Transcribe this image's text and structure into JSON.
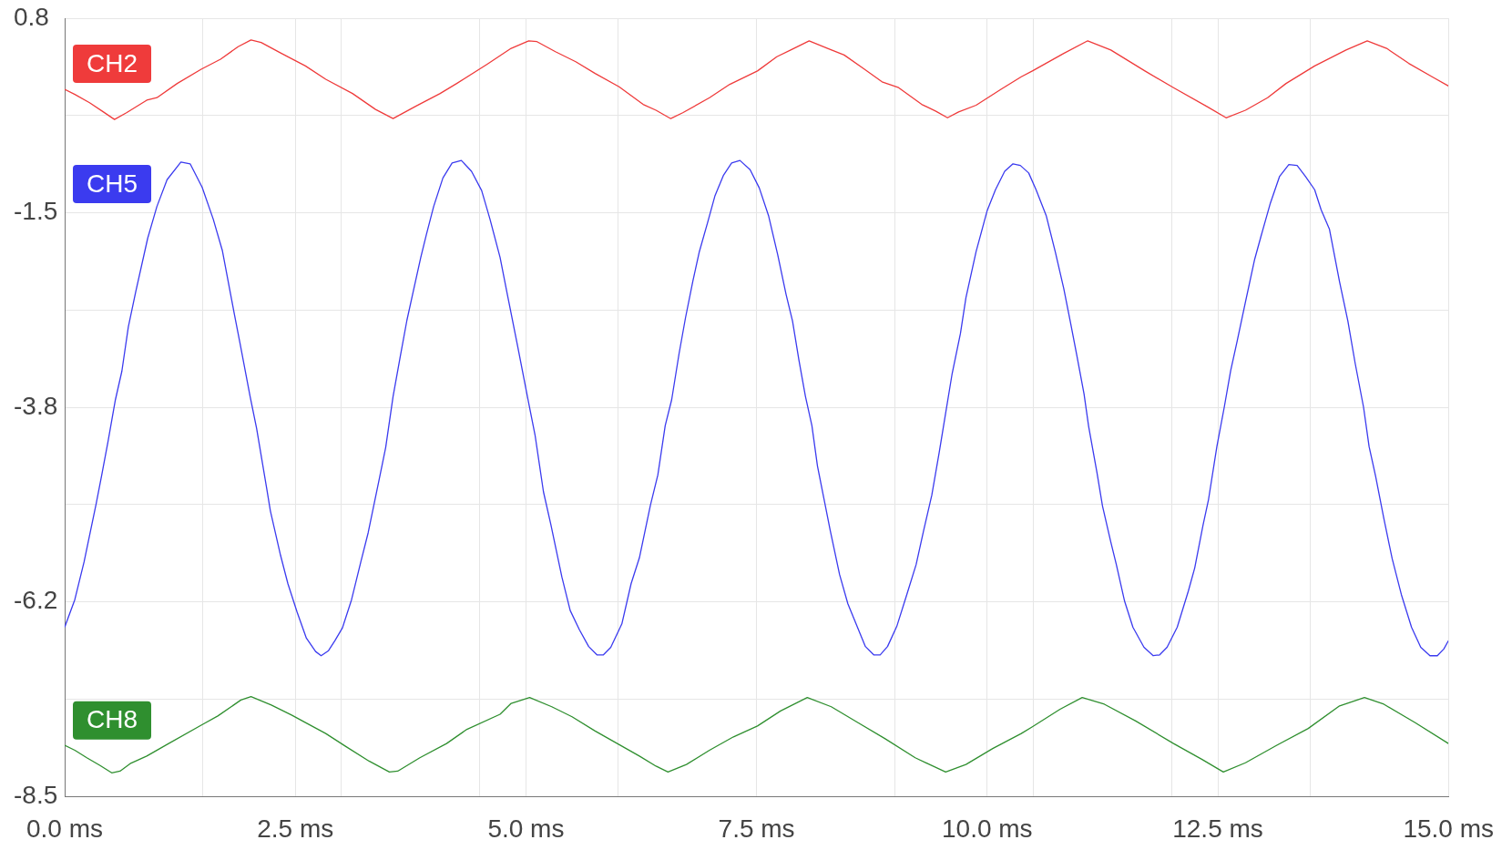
{
  "chart_data": {
    "type": "line",
    "xlim": [
      0,
      15
    ],
    "xticks": [
      {
        "value": 0,
        "label": "0.0 ms"
      },
      {
        "value": 1.5,
        "label": null
      },
      {
        "value": 2.5,
        "label": "2.5 ms"
      },
      {
        "value": 3,
        "label": null
      },
      {
        "value": 4.5,
        "label": null
      },
      {
        "value": 5,
        "label": "5.0 ms"
      },
      {
        "value": 6,
        "label": null
      },
      {
        "value": 7.5,
        "label": "7.5 ms"
      },
      {
        "value": 9,
        "label": null
      },
      {
        "value": 10,
        "label": "10.0 ms"
      },
      {
        "value": 10.5,
        "label": null
      },
      {
        "value": 12,
        "label": null
      },
      {
        "value": 12.5,
        "label": "12.5 ms"
      },
      {
        "value": 13.5,
        "label": null
      },
      {
        "value": 15,
        "label": "15.0 ms"
      }
    ],
    "ylim": [
      -8.5,
      0.8
    ],
    "yticks": [
      0.8,
      {
        "value": -0.3625,
        "label": null
      },
      {
        "value": -1.525,
        "label": "-1.5"
      },
      {
        "value": -2.6875,
        "label": null
      },
      {
        "value": -3.85,
        "label": "-3.8"
      },
      {
        "value": -5.0125,
        "label": null
      },
      {
        "value": -6.175,
        "label": "-6.2"
      },
      {
        "value": -7.3375,
        "label": null
      },
      -8.5
    ],
    "grid": true,
    "series": [
      {
        "name": "CH2",
        "color": "#ef3b3b",
        "x": [
          0,
          0.11,
          0.27,
          0.42,
          0.54,
          0.67,
          0.89,
          1.0,
          1.22,
          1.48,
          1.69,
          1.88,
          2.02,
          2.13,
          2.35,
          2.61,
          2.83,
          3.12,
          3.37,
          3.56,
          3.81,
          4.07,
          4.25,
          4.58,
          4.84,
          5.03,
          5.12,
          5.32,
          5.54,
          5.75,
          6.01,
          6.27,
          6.41,
          6.57,
          6.7,
          6.99,
          7.21,
          7.51,
          7.72,
          7.87,
          8.07,
          8.27,
          8.45,
          8.67,
          8.86,
          9.04,
          9.29,
          9.44,
          9.57,
          9.69,
          9.88,
          10.15,
          10.37,
          10.49,
          10.83,
          11.09,
          11.34,
          11.71,
          12.02,
          12.39,
          12.59,
          12.8,
          13.04,
          13.24,
          13.55,
          13.89,
          14.12,
          14.33,
          14.57,
          14.84,
          15
        ],
        "values": [
          -0.05,
          -0.11,
          -0.21,
          -0.32,
          -0.41,
          -0.33,
          -0.18,
          -0.15,
          0.02,
          0.19,
          0.31,
          0.46,
          0.54,
          0.51,
          0.38,
          0.23,
          0.07,
          -0.1,
          -0.29,
          -0.4,
          -0.25,
          -0.1,
          0.02,
          0.25,
          0.44,
          0.53,
          0.52,
          0.4,
          0.28,
          0.14,
          -0.02,
          -0.23,
          -0.3,
          -0.4,
          -0.33,
          -0.15,
          0.01,
          0.17,
          0.34,
          0.42,
          0.53,
          0.44,
          0.36,
          0.19,
          0.04,
          -0.03,
          -0.23,
          -0.31,
          -0.39,
          -0.32,
          -0.24,
          -0.05,
          0.1,
          0.17,
          0.38,
          0.53,
          0.42,
          0.17,
          -0.03,
          -0.26,
          -0.39,
          -0.3,
          -0.15,
          0.02,
          0.23,
          0.42,
          0.53,
          0.44,
          0.26,
          0.09,
          -0.01
        ]
      },
      {
        "name": "CH5",
        "color": "#3b3bef",
        "x": [
          0,
          0.11,
          0.21,
          0.34,
          0.4,
          0.47,
          0.55,
          0.62,
          0.69,
          0.77,
          0.9,
          1.0,
          1.11,
          1.26,
          1.36,
          1.49,
          1.61,
          1.71,
          1.84,
          1.9,
          2.01,
          2.08,
          2.19,
          2.23,
          2.34,
          2.42,
          2.52,
          2.62,
          2.72,
          2.78,
          2.86,
          2.93,
          3.01,
          3.11,
          3.21,
          3.29,
          3.41,
          3.48,
          3.56,
          3.64,
          3.71,
          3.77,
          3.86,
          3.92,
          4.0,
          4.1,
          4.2,
          4.3,
          4.41,
          4.52,
          4.61,
          4.72,
          4.8,
          4.91,
          5.03,
          5.1,
          5.19,
          5.27,
          5.39,
          5.48,
          5.58,
          5.68,
          5.77,
          5.84,
          5.92,
          6.04,
          6.14,
          6.23,
          6.35,
          6.43,
          6.51,
          6.58,
          6.66,
          6.73,
          6.81,
          6.88,
          6.97,
          7.05,
          7.14,
          7.23,
          7.32,
          7.43,
          7.53,
          7.63,
          7.73,
          7.82,
          7.89,
          7.96,
          8.03,
          8.1,
          8.16,
          8.23,
          8.3,
          8.4,
          8.49,
          8.59,
          8.68,
          8.77,
          8.84,
          8.92,
          9.02,
          9.12,
          9.23,
          9.31,
          9.4,
          9.48,
          9.55,
          9.62,
          9.71,
          9.77,
          9.88,
          10.0,
          10.09,
          10.19,
          10.28,
          10.36,
          10.45,
          10.53,
          10.64,
          10.74,
          10.83,
          10.9,
          10.97,
          11.05,
          11.1,
          11.19,
          11.25,
          11.34,
          11.4,
          11.49,
          11.58,
          11.7,
          11.8,
          11.87,
          11.95,
          12.06,
          12.18,
          12.25,
          12.34,
          12.4,
          12.49,
          12.57,
          12.64,
          12.71,
          12.8,
          12.9,
          12.97,
          13.07,
          13.17,
          13.27,
          13.36,
          13.45,
          13.55,
          13.62,
          13.71,
          13.82,
          13.91,
          13.99,
          14.08,
          14.14,
          14.21,
          14.3,
          14.39,
          14.49,
          14.6,
          14.7,
          14.8,
          14.88,
          14.95,
          15
        ],
        "values": [
          -6.48,
          -6.15,
          -5.7,
          -5.01,
          -4.67,
          -4.26,
          -3.76,
          -3.42,
          -2.89,
          -2.47,
          -1.83,
          -1.45,
          -1.13,
          -0.92,
          -0.94,
          -1.22,
          -1.6,
          -1.98,
          -2.74,
          -3.08,
          -3.72,
          -4.1,
          -4.82,
          -5.09,
          -5.62,
          -5.96,
          -6.3,
          -6.61,
          -6.77,
          -6.82,
          -6.76,
          -6.64,
          -6.49,
          -6.15,
          -5.7,
          -5.35,
          -4.71,
          -4.33,
          -3.72,
          -3.23,
          -2.81,
          -2.51,
          -2.06,
          -1.79,
          -1.45,
          -1.11,
          -0.93,
          -0.9,
          -1.03,
          -1.26,
          -1.6,
          -2.06,
          -2.51,
          -3.12,
          -3.8,
          -4.19,
          -4.86,
          -5.25,
          -5.88,
          -6.28,
          -6.51,
          -6.71,
          -6.81,
          -6.81,
          -6.72,
          -6.44,
          -5.96,
          -5.65,
          -5.02,
          -4.66,
          -4.07,
          -3.76,
          -3.21,
          -2.78,
          -2.34,
          -1.99,
          -1.64,
          -1.32,
          -1.08,
          -0.93,
          -0.9,
          -1.01,
          -1.23,
          -1.56,
          -2.03,
          -2.5,
          -2.82,
          -3.29,
          -3.72,
          -4.07,
          -4.55,
          -4.94,
          -5.33,
          -5.85,
          -6.2,
          -6.47,
          -6.71,
          -6.81,
          -6.81,
          -6.71,
          -6.47,
          -6.12,
          -5.73,
          -5.33,
          -4.9,
          -4.39,
          -3.92,
          -3.45,
          -2.97,
          -2.54,
          -1.99,
          -1.5,
          -1.25,
          -1.03,
          -0.94,
          -0.96,
          -1.05,
          -1.25,
          -1.56,
          -2.0,
          -2.43,
          -2.82,
          -3.22,
          -3.69,
          -4.08,
          -4.63,
          -5.03,
          -5.46,
          -5.73,
          -6.17,
          -6.48,
          -6.72,
          -6.82,
          -6.81,
          -6.72,
          -6.48,
          -6.05,
          -5.77,
          -5.26,
          -4.95,
          -4.32,
          -3.85,
          -3.41,
          -3.06,
          -2.59,
          -2.08,
          -1.8,
          -1.41,
          -1.09,
          -0.95,
          -0.96,
          -1.09,
          -1.25,
          -1.49,
          -1.72,
          -2.35,
          -2.82,
          -3.33,
          -3.85,
          -4.32,
          -4.67,
          -5.18,
          -5.66,
          -6.09,
          -6.48,
          -6.72,
          -6.82,
          -6.82,
          -6.74,
          -6.64
        ]
      },
      {
        "name": "CH8",
        "color": "#2f8f2f",
        "x": [
          0,
          0.11,
          0.24,
          0.38,
          0.51,
          0.6,
          0.71,
          0.89,
          1.11,
          1.48,
          1.66,
          1.91,
          2.02,
          2.24,
          2.46,
          2.61,
          2.83,
          3.04,
          3.3,
          3.52,
          3.61,
          3.85,
          4.14,
          4.36,
          4.72,
          4.84,
          5.04,
          5.28,
          5.5,
          5.75,
          5.99,
          6.23,
          6.41,
          6.54,
          6.74,
          6.99,
          7.25,
          7.51,
          7.76,
          8.05,
          8.31,
          8.6,
          8.89,
          9.22,
          9.55,
          9.77,
          10.06,
          10.37,
          10.49,
          10.79,
          11.03,
          11.27,
          11.61,
          12.02,
          12.33,
          12.56,
          12.8,
          13.14,
          13.48,
          13.82,
          14.09,
          14.3,
          14.64,
          15
        ],
        "values": [
          -7.89,
          -7.95,
          -8.04,
          -8.13,
          -8.22,
          -8.2,
          -8.11,
          -8.02,
          -7.88,
          -7.65,
          -7.54,
          -7.35,
          -7.31,
          -7.41,
          -7.53,
          -7.62,
          -7.75,
          -7.9,
          -8.08,
          -8.21,
          -8.2,
          -8.04,
          -7.87,
          -7.7,
          -7.52,
          -7.39,
          -7.32,
          -7.43,
          -7.55,
          -7.72,
          -7.87,
          -8.02,
          -8.14,
          -8.21,
          -8.12,
          -7.95,
          -7.79,
          -7.66,
          -7.48,
          -7.32,
          -7.43,
          -7.62,
          -7.81,
          -8.04,
          -8.21,
          -8.12,
          -7.93,
          -7.75,
          -7.67,
          -7.46,
          -7.32,
          -7.4,
          -7.6,
          -7.87,
          -8.06,
          -8.21,
          -8.1,
          -7.89,
          -7.69,
          -7.42,
          -7.32,
          -7.4,
          -7.62,
          -7.87
        ]
      }
    ]
  }
}
